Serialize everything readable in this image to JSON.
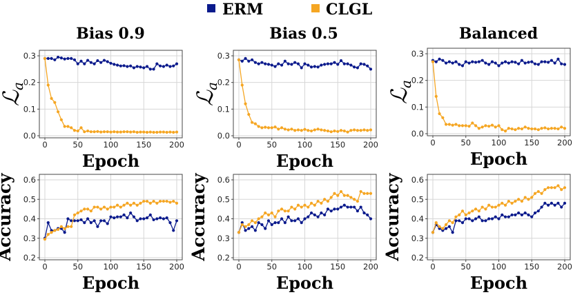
{
  "legend": [
    {
      "name": "ERM",
      "color": "#0a1a8c"
    },
    {
      "name": "CLGL",
      "color": "#f5a623"
    }
  ],
  "chart_data": [
    {
      "type": "line",
      "title": "Bias 0.9",
      "xlabel": "Epoch",
      "ylabel": "ℒ",
      "ylabel_sub": "a",
      "xlim": [
        0,
        200
      ],
      "ylim": [
        0,
        0.3
      ],
      "xticks": [
        "0",
        "50",
        "100",
        "150",
        "200"
      ],
      "yticks": [
        "0.0",
        "0.1",
        "0.2",
        "0.3"
      ],
      "x": [
        0,
        5,
        10,
        15,
        20,
        25,
        30,
        35,
        40,
        45,
        50,
        55,
        60,
        65,
        70,
        75,
        80,
        85,
        90,
        95,
        100,
        105,
        110,
        115,
        120,
        125,
        130,
        135,
        140,
        145,
        150,
        155,
        160,
        165,
        170,
        175,
        180,
        185,
        190,
        195,
        200
      ],
      "series": [
        {
          "name": "ERM",
          "values": [
            0.29,
            0.29,
            0.29,
            0.285,
            0.295,
            0.292,
            0.288,
            0.29,
            0.29,
            0.285,
            0.27,
            0.28,
            0.27,
            0.283,
            0.275,
            0.27,
            0.282,
            0.275,
            0.283,
            0.278,
            0.272,
            0.268,
            0.265,
            0.262,
            0.263,
            0.26,
            0.262,
            0.255,
            0.26,
            0.258,
            0.255,
            0.26,
            0.25,
            0.25,
            0.27,
            0.262,
            0.26,
            0.265,
            0.26,
            0.262,
            0.27
          ]
        },
        {
          "name": "CLGL",
          "values": [
            0.29,
            0.19,
            0.14,
            0.125,
            0.09,
            0.06,
            0.035,
            0.035,
            0.03,
            0.02,
            0.018,
            0.03,
            0.015,
            0.018,
            0.015,
            0.015,
            0.016,
            0.014,
            0.015,
            0.015,
            0.014,
            0.015,
            0.014,
            0.014,
            0.015,
            0.015,
            0.014,
            0.015,
            0.013,
            0.014,
            0.014,
            0.013,
            0.014,
            0.013,
            0.013,
            0.014,
            0.014,
            0.013,
            0.014,
            0.013,
            0.014
          ]
        }
      ]
    },
    {
      "type": "line",
      "title": "Bias 0.5",
      "xlabel": "Epoch",
      "ylabel": "ℒ",
      "ylabel_sub": "a",
      "xlim": [
        0,
        200
      ],
      "ylim": [
        0,
        0.3
      ],
      "xticks": [
        "0",
        "50",
        "100",
        "150",
        "200"
      ],
      "yticks": [
        "0.0",
        "0.1",
        "0.2",
        "0.3"
      ],
      "x": [
        0,
        5,
        10,
        15,
        20,
        25,
        30,
        35,
        40,
        45,
        50,
        55,
        60,
        65,
        70,
        75,
        80,
        85,
        90,
        95,
        100,
        105,
        110,
        115,
        120,
        125,
        130,
        135,
        140,
        145,
        150,
        155,
        160,
        165,
        170,
        175,
        180,
        185,
        190,
        195,
        200
      ],
      "series": [
        {
          "name": "ERM",
          "values": [
            0.285,
            0.28,
            0.29,
            0.28,
            0.285,
            0.275,
            0.27,
            0.275,
            0.27,
            0.268,
            0.265,
            0.26,
            0.27,
            0.265,
            0.28,
            0.27,
            0.268,
            0.275,
            0.27,
            0.255,
            0.27,
            0.265,
            0.258,
            0.26,
            0.258,
            0.265,
            0.268,
            0.27,
            0.27,
            0.275,
            0.268,
            0.282,
            0.27,
            0.27,
            0.265,
            0.258,
            0.255,
            0.27,
            0.268,
            0.262,
            0.25
          ]
        },
        {
          "name": "CLGL",
          "values": [
            0.285,
            0.19,
            0.12,
            0.08,
            0.05,
            0.045,
            0.035,
            0.03,
            0.032,
            0.03,
            0.03,
            0.033,
            0.025,
            0.03,
            0.025,
            0.022,
            0.025,
            0.02,
            0.022,
            0.02,
            0.024,
            0.02,
            0.018,
            0.022,
            0.025,
            0.022,
            0.02,
            0.018,
            0.015,
            0.018,
            0.016,
            0.02,
            0.018,
            0.014,
            0.02,
            0.022,
            0.02,
            0.02,
            0.022,
            0.02,
            0.022
          ]
        }
      ]
    },
    {
      "type": "line",
      "title": "Balanced",
      "xlabel": "Epoch",
      "ylabel": "ℒ",
      "ylabel_sub": "a",
      "xlim": [
        0,
        200
      ],
      "ylim": [
        0,
        0.3
      ],
      "xticks": [
        "0",
        "50",
        "100",
        "150",
        "200"
      ],
      "yticks": [
        "0.0",
        "0.1",
        "0.2",
        "0.3"
      ],
      "x": [
        0,
        5,
        10,
        15,
        20,
        25,
        30,
        35,
        40,
        45,
        50,
        55,
        60,
        65,
        70,
        75,
        80,
        85,
        90,
        95,
        100,
        105,
        110,
        115,
        120,
        125,
        130,
        135,
        140,
        145,
        150,
        155,
        160,
        165,
        170,
        175,
        180,
        185,
        190,
        195,
        200
      ],
      "series": [
        {
          "name": "ERM",
          "values": [
            0.275,
            0.27,
            0.28,
            0.275,
            0.265,
            0.27,
            0.265,
            0.27,
            0.26,
            0.255,
            0.27,
            0.265,
            0.27,
            0.268,
            0.27,
            0.275,
            0.265,
            0.26,
            0.27,
            0.265,
            0.255,
            0.265,
            0.27,
            0.265,
            0.27,
            0.268,
            0.262,
            0.275,
            0.265,
            0.268,
            0.27,
            0.262,
            0.26,
            0.27,
            0.27,
            0.268,
            0.275,
            0.265,
            0.28,
            0.262,
            0.26
          ]
        },
        {
          "name": "CLGL",
          "values": [
            0.27,
            0.14,
            0.075,
            0.06,
            0.035,
            0.035,
            0.032,
            0.035,
            0.03,
            0.03,
            0.03,
            0.028,
            0.04,
            0.03,
            0.02,
            0.025,
            0.03,
            0.028,
            0.032,
            0.025,
            0.03,
            0.015,
            0.01,
            0.02,
            0.018,
            0.015,
            0.02,
            0.018,
            0.025,
            0.02,
            0.018,
            0.018,
            0.015,
            0.02,
            0.022,
            0.018,
            0.02,
            0.02,
            0.018,
            0.025,
            0.02
          ]
        }
      ]
    },
    {
      "type": "line",
      "title": "",
      "xlabel": "Epoch",
      "ylabel": "Accuracy",
      "xlim": [
        0,
        200
      ],
      "ylim": [
        0.2,
        0.6
      ],
      "xticks": [
        "0",
        "50",
        "100",
        "150",
        "200"
      ],
      "yticks": [
        "0.2",
        "0.3",
        "0.4",
        "0.5",
        "0.6"
      ],
      "x": [
        0,
        5,
        10,
        15,
        20,
        25,
        30,
        35,
        40,
        45,
        50,
        55,
        60,
        65,
        70,
        75,
        80,
        85,
        90,
        95,
        100,
        105,
        110,
        115,
        120,
        125,
        130,
        135,
        140,
        145,
        150,
        155,
        160,
        165,
        170,
        175,
        180,
        185,
        190,
        195,
        200
      ],
      "series": [
        {
          "name": "ERM",
          "values": [
            0.3,
            0.38,
            0.34,
            0.34,
            0.35,
            0.35,
            0.33,
            0.4,
            0.39,
            0.39,
            0.39,
            0.395,
            0.38,
            0.4,
            0.38,
            0.39,
            0.36,
            0.39,
            0.39,
            0.375,
            0.41,
            0.405,
            0.41,
            0.41,
            0.42,
            0.405,
            0.43,
            0.41,
            0.39,
            0.4,
            0.4,
            0.405,
            0.42,
            0.395,
            0.4,
            0.405,
            0.4,
            0.405,
            0.38,
            0.34,
            0.39
          ]
        },
        {
          "name": "CLGL",
          "values": [
            0.295,
            0.32,
            0.33,
            0.34,
            0.345,
            0.36,
            0.35,
            0.36,
            0.36,
            0.42,
            0.43,
            0.44,
            0.45,
            0.45,
            0.44,
            0.46,
            0.46,
            0.45,
            0.46,
            0.45,
            0.46,
            0.46,
            0.47,
            0.46,
            0.47,
            0.48,
            0.47,
            0.48,
            0.47,
            0.48,
            0.49,
            0.49,
            0.48,
            0.49,
            0.48,
            0.49,
            0.49,
            0.49,
            0.485,
            0.49,
            0.48
          ]
        }
      ]
    },
    {
      "type": "line",
      "title": "",
      "xlabel": "Epoch",
      "ylabel": "Accuracy",
      "xlim": [
        0,
        200
      ],
      "ylim": [
        0.2,
        0.6
      ],
      "xticks": [
        "0",
        "50",
        "100",
        "150",
        "200"
      ],
      "yticks": [
        "0.2",
        "0.3",
        "0.4",
        "0.5",
        "0.6"
      ],
      "x": [
        0,
        5,
        10,
        15,
        20,
        25,
        30,
        35,
        40,
        45,
        50,
        55,
        60,
        65,
        70,
        75,
        80,
        85,
        90,
        95,
        100,
        105,
        110,
        115,
        120,
        125,
        130,
        135,
        140,
        145,
        150,
        155,
        160,
        165,
        170,
        175,
        180,
        185,
        190,
        195,
        200
      ],
      "series": [
        {
          "name": "ERM",
          "values": [
            0.33,
            0.38,
            0.34,
            0.35,
            0.36,
            0.34,
            0.38,
            0.37,
            0.35,
            0.39,
            0.37,
            0.38,
            0.38,
            0.4,
            0.38,
            0.41,
            0.39,
            0.39,
            0.4,
            0.38,
            0.4,
            0.41,
            0.43,
            0.42,
            0.41,
            0.43,
            0.42,
            0.45,
            0.44,
            0.45,
            0.45,
            0.46,
            0.47,
            0.46,
            0.46,
            0.46,
            0.44,
            0.46,
            0.43,
            0.42,
            0.4
          ]
        },
        {
          "name": "CLGL",
          "values": [
            0.33,
            0.37,
            0.36,
            0.37,
            0.39,
            0.38,
            0.4,
            0.41,
            0.43,
            0.42,
            0.43,
            0.41,
            0.44,
            0.45,
            0.44,
            0.44,
            0.46,
            0.45,
            0.47,
            0.46,
            0.47,
            0.46,
            0.48,
            0.47,
            0.49,
            0.48,
            0.5,
            0.49,
            0.51,
            0.53,
            0.52,
            0.54,
            0.52,
            0.52,
            0.51,
            0.5,
            0.49,
            0.54,
            0.53,
            0.53,
            0.53
          ]
        }
      ]
    },
    {
      "type": "line",
      "title": "",
      "xlabel": "Epoch",
      "ylabel": "Accuracy",
      "xlim": [
        0,
        200
      ],
      "ylim": [
        0.2,
        0.6
      ],
      "xticks": [
        "0",
        "50",
        "100",
        "150",
        "200"
      ],
      "yticks": [
        "0.2",
        "0.3",
        "0.4",
        "0.5",
        "0.6"
      ],
      "x": [
        0,
        5,
        10,
        15,
        20,
        25,
        30,
        35,
        40,
        45,
        50,
        55,
        60,
        65,
        70,
        75,
        80,
        85,
        90,
        95,
        100,
        105,
        110,
        115,
        120,
        125,
        130,
        135,
        140,
        145,
        150,
        155,
        160,
        165,
        170,
        175,
        180,
        185,
        190,
        195,
        200
      ],
      "series": [
        {
          "name": "ERM",
          "values": [
            0.33,
            0.37,
            0.35,
            0.34,
            0.35,
            0.36,
            0.33,
            0.39,
            0.39,
            0.38,
            0.4,
            0.4,
            0.39,
            0.4,
            0.41,
            0.39,
            0.39,
            0.4,
            0.4,
            0.41,
            0.4,
            0.42,
            0.41,
            0.41,
            0.42,
            0.42,
            0.43,
            0.42,
            0.43,
            0.42,
            0.41,
            0.43,
            0.44,
            0.46,
            0.48,
            0.47,
            0.48,
            0.47,
            0.48,
            0.46,
            0.48
          ]
        },
        {
          "name": "CLGL",
          "values": [
            0.33,
            0.38,
            0.36,
            0.35,
            0.37,
            0.39,
            0.38,
            0.41,
            0.42,
            0.44,
            0.42,
            0.43,
            0.44,
            0.45,
            0.44,
            0.46,
            0.45,
            0.47,
            0.46,
            0.46,
            0.47,
            0.48,
            0.47,
            0.49,
            0.48,
            0.49,
            0.5,
            0.49,
            0.51,
            0.5,
            0.51,
            0.53,
            0.54,
            0.53,
            0.55,
            0.56,
            0.56,
            0.56,
            0.57,
            0.55,
            0.56
          ]
        }
      ]
    }
  ]
}
